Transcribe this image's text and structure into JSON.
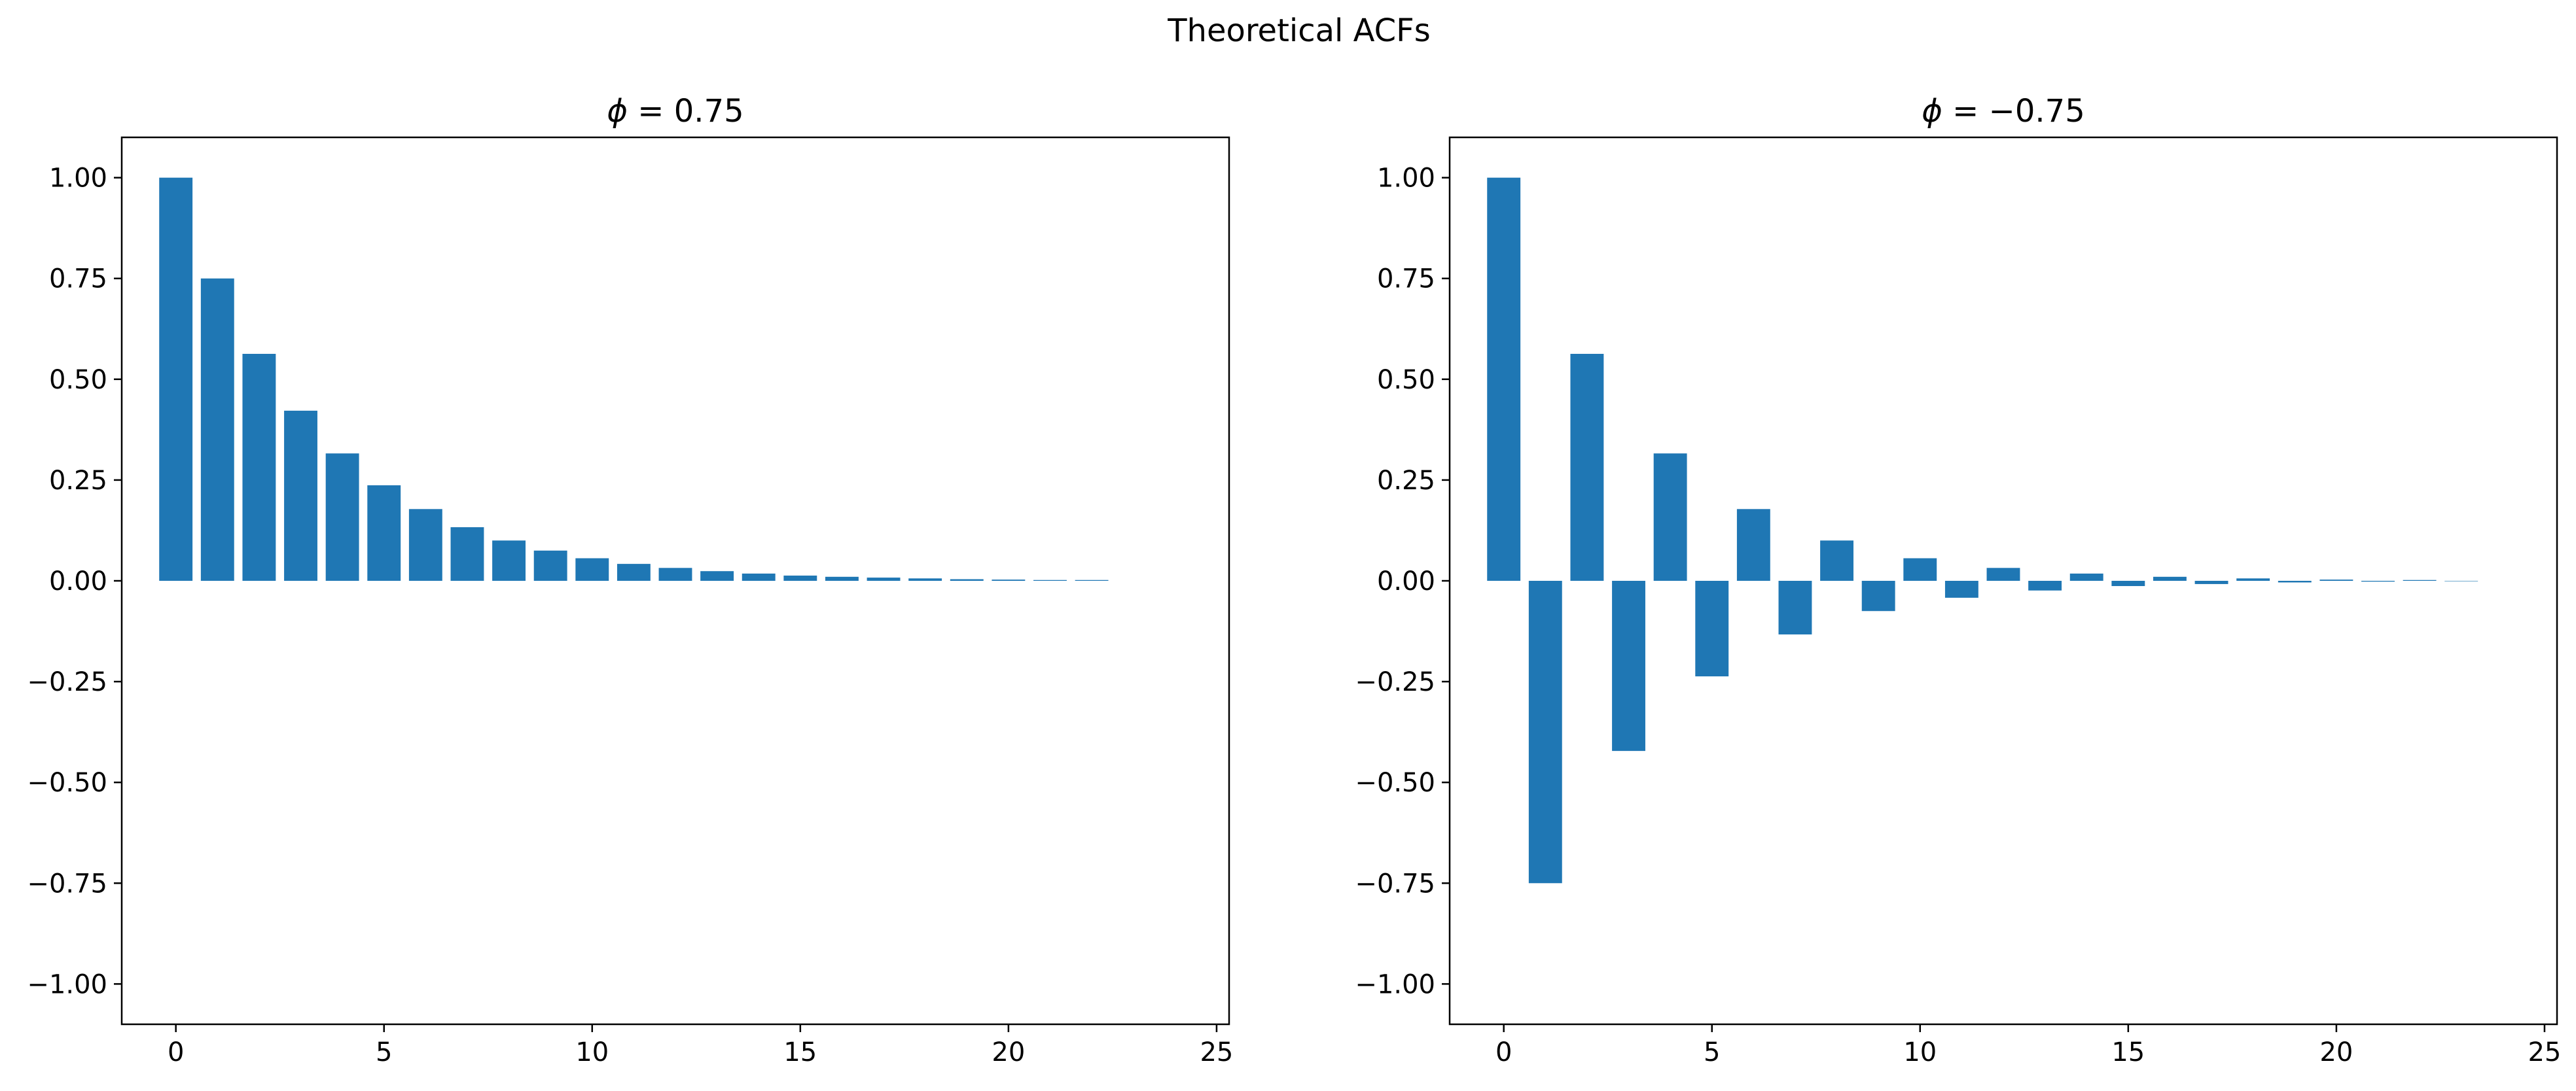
{
  "figure": {
    "title": "Theoretical ACFs"
  },
  "chart_data": [
    {
      "type": "bar",
      "title": "ϕ = 0.75",
      "title_phi": "ϕ",
      "title_rest": " = 0.75",
      "xlabel": "",
      "ylabel": "",
      "xlim": [
        -1.3,
        25.3
      ],
      "ylim": [
        -1.1,
        1.1
      ],
      "xticks": [
        0,
        5,
        10,
        15,
        20,
        25
      ],
      "yticks": [
        -1.0,
        -0.75,
        -0.5,
        -0.25,
        0.0,
        0.25,
        0.5,
        0.75,
        1.0
      ],
      "ytick_labels": [
        "−1.00",
        "−0.75",
        "−0.50",
        "−0.25",
        "0.00",
        "0.25",
        "0.50",
        "0.75",
        "1.00"
      ],
      "grid": false,
      "bar_color": "#1f77b4",
      "x": [
        0,
        1,
        2,
        3,
        4,
        5,
        6,
        7,
        8,
        9,
        10,
        11,
        12,
        13,
        14,
        15,
        16,
        17,
        18,
        19,
        20,
        21,
        22
      ],
      "values": [
        1.0,
        0.75,
        0.563,
        0.422,
        0.316,
        0.237,
        0.178,
        0.133,
        0.1,
        0.075,
        0.056,
        0.042,
        0.032,
        0.024,
        0.018,
        0.013,
        0.01,
        0.008,
        0.006,
        0.004,
        0.003,
        0.002,
        0.002
      ]
    },
    {
      "type": "bar",
      "title": "ϕ = −0.75",
      "title_phi": "ϕ",
      "title_rest": " = −0.75",
      "xlabel": "",
      "ylabel": "",
      "xlim": [
        -1.3,
        25.3
      ],
      "ylim": [
        -1.1,
        1.1
      ],
      "xticks": [
        0,
        5,
        10,
        15,
        20,
        25
      ],
      "yticks": [
        -1.0,
        -0.75,
        -0.5,
        -0.25,
        0.0,
        0.25,
        0.5,
        0.75,
        1.0
      ],
      "ytick_labels": [
        "−1.00",
        "−0.75",
        "−0.50",
        "−0.25",
        "0.00",
        "0.25",
        "0.50",
        "0.75",
        "1.00"
      ],
      "grid": false,
      "bar_color": "#1f77b4",
      "x": [
        0,
        1,
        2,
        3,
        4,
        5,
        6,
        7,
        8,
        9,
        10,
        11,
        12,
        13,
        14,
        15,
        16,
        17,
        18,
        19,
        20,
        21,
        22,
        23
      ],
      "values": [
        1.0,
        -0.75,
        0.563,
        -0.422,
        0.316,
        -0.237,
        0.178,
        -0.133,
        0.1,
        -0.075,
        0.056,
        -0.042,
        0.032,
        -0.024,
        0.018,
        -0.013,
        0.01,
        -0.008,
        0.006,
        -0.004,
        0.003,
        -0.002,
        0.002,
        -0.001
      ]
    }
  ]
}
